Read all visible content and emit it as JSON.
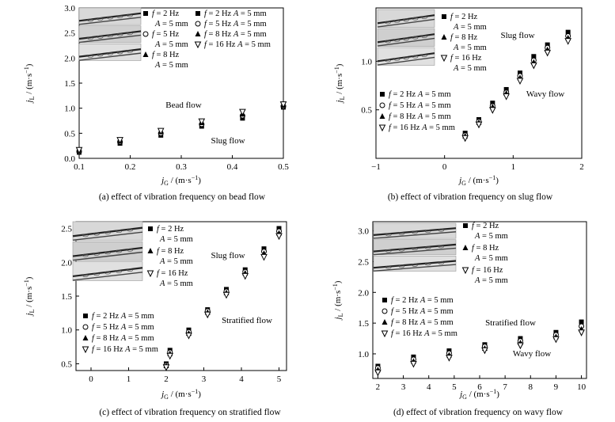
{
  "chart_data": [
    {
      "type": "scatter",
      "caption": "(a) effect of vibration frequency on bead flow",
      "xlabel_var": "j",
      "xlabel_sub": "G",
      "xlabel_unit": " / (m·s",
      "ylabel_var": "j",
      "ylabel_sub": "L",
      "ylabel_unit": " / (m·s",
      "unit_exp": "−1",
      "unit_close": ")",
      "xlim": [
        0.1,
        0.5
      ],
      "ylim": [
        0.0,
        3.0
      ],
      "xticks": [
        "0.1",
        "0.2",
        "0.3",
        "0.4",
        "0.5"
      ],
      "yticks": [
        "0.0",
        "0.5",
        "1.0",
        "1.5",
        "2.0",
        "2.5",
        "3.0"
      ],
      "legend": [
        {
          "marker": "square",
          "label": "f = 2 Hz  A = 5 mm"
        },
        {
          "marker": "circle",
          "label": "f = 5 Hz  A = 5 mm"
        },
        {
          "marker": "triangle",
          "label": "f = 8 Hz  A = 5 mm"
        },
        {
          "marker": "tri-down",
          "label": "f = 16 Hz A = 5 mm"
        }
      ],
      "inset_labels": [
        {
          "marker": "square",
          "line1": "f = 2 Hz",
          "line2": "A = 5 mm"
        },
        {
          "marker": "circle",
          "line1": "f = 5 Hz",
          "line2": "A = 5 mm"
        },
        {
          "marker": "triangle",
          "line1": "f = 8 Hz",
          "line2": "A = 5 mm"
        }
      ],
      "annotations": [
        "Bead flow",
        "Slug flow"
      ],
      "x": [
        0.1,
        0.18,
        0.26,
        0.34,
        0.42,
        0.5
      ],
      "series": [
        {
          "name": "f = 2 Hz",
          "marker": "square",
          "values": [
            0.12,
            0.3,
            0.46,
            0.64,
            0.8,
            1.02
          ]
        },
        {
          "name": "f = 5 Hz",
          "marker": "circle",
          "values": [
            0.14,
            0.33,
            0.5,
            0.68,
            0.85,
            1.04
          ]
        },
        {
          "name": "f = 8 Hz",
          "marker": "triangle",
          "values": [
            0.16,
            0.35,
            0.53,
            0.71,
            0.88,
            1.06
          ]
        },
        {
          "name": "f = 16 Hz",
          "marker": "tri-down",
          "values": [
            0.17,
            0.37,
            0.55,
            0.74,
            0.93,
            1.08
          ]
        }
      ]
    },
    {
      "type": "scatter",
      "caption": "(b) effect of vibration frequency on slug flow",
      "xlabel_var": "j",
      "xlabel_sub": "G",
      "xlabel_unit": " / (m·s",
      "ylabel_var": "j",
      "ylabel_sub": "L",
      "ylabel_unit": " / (m·s",
      "unit_exp": "−1",
      "unit_close": ")",
      "xlim": [
        -1,
        2
      ],
      "ylim": [
        0.0,
        1.55
      ],
      "xticks": [
        "−1",
        "0",
        "1",
        "2"
      ],
      "yticks": [
        "0.5",
        "1.0"
      ],
      "legend": [
        {
          "marker": "square",
          "label": "f = 2 Hz  A = 5 mm"
        },
        {
          "marker": "circle",
          "label": "f = 5 Hz  A = 5 mm"
        },
        {
          "marker": "triangle",
          "label": "f = 8 Hz  A = 5 mm"
        },
        {
          "marker": "tri-down",
          "label": "f = 16 Hz A = 5 mm"
        }
      ],
      "inset_labels": [
        {
          "marker": "square",
          "line1": "f = 2 Hz",
          "line2": "A = 5 mm"
        },
        {
          "marker": "triangle",
          "line1": "f = 8 Hz",
          "line2": "A = 5 mm"
        },
        {
          "marker": "tri-down",
          "line1": "f = 16 Hz",
          "line2": "A = 5 mm"
        }
      ],
      "annotations": [
        "Slug flow",
        "Wavy flow"
      ],
      "x": [
        0.3,
        0.5,
        0.7,
        0.9,
        1.1,
        1.3,
        1.5,
        1.8
      ],
      "series": [
        {
          "name": "f = 2 Hz",
          "marker": "square",
          "values": [
            0.26,
            0.4,
            0.57,
            0.71,
            0.88,
            1.05,
            1.17,
            1.3
          ]
        },
        {
          "name": "f = 5 Hz",
          "marker": "circle",
          "values": [
            0.24,
            0.38,
            0.54,
            0.68,
            0.85,
            1.01,
            1.14,
            1.26
          ]
        },
        {
          "name": "f = 8 Hz",
          "marker": "triangle",
          "values": [
            0.23,
            0.37,
            0.53,
            0.67,
            0.83,
            0.99,
            1.12,
            1.24
          ]
        },
        {
          "name": "f = 16 Hz",
          "marker": "tri-down",
          "values": [
            0.21,
            0.35,
            0.5,
            0.64,
            0.8,
            0.96,
            1.09,
            1.21
          ]
        }
      ]
    },
    {
      "type": "scatter",
      "caption": "(c) effect of vibration frequency on stratified flow",
      "xlabel_var": "j",
      "xlabel_sub": "G",
      "xlabel_unit": " / (m·s",
      "ylabel_var": "j",
      "ylabel_sub": "L",
      "ylabel_unit": " / (m·s",
      "unit_exp": "−1",
      "unit_close": ")",
      "xlim": [
        -0.4,
        5.2
      ],
      "ylim": [
        0.4,
        2.6
      ],
      "xticks": [
        "0",
        "1",
        "2",
        "3",
        "4",
        "5"
      ],
      "yticks": [
        "0.5",
        "1.0",
        "1.5",
        "2.0",
        "2.5"
      ],
      "legend": [
        {
          "marker": "square",
          "label": "f = 2 Hz  A = 5 mm"
        },
        {
          "marker": "circle",
          "label": "f = 5 Hz  A = 5 mm"
        },
        {
          "marker": "triangle",
          "label": "f = 8 Hz  A = 5 mm"
        },
        {
          "marker": "tri-down",
          "label": "f = 16 Hz A = 5 mm"
        }
      ],
      "inset_labels": [
        {
          "marker": "square",
          "line1": "f = 2 Hz",
          "line2": "A = 5 mm"
        },
        {
          "marker": "triangle",
          "line1": "f = 8 Hz",
          "line2": "A = 5 mm"
        },
        {
          "marker": "tri-down",
          "line1": "f = 16 Hz",
          "line2": "A = 5 mm"
        }
      ],
      "annotations": [
        "Slug flow",
        "Stratified flow"
      ],
      "x": [
        2.0,
        2.1,
        2.6,
        3.1,
        3.6,
        4.1,
        4.6,
        5.0
      ],
      "series": [
        {
          "name": "f = 2 Hz",
          "marker": "square",
          "values": [
            0.5,
            0.7,
            1.0,
            1.3,
            1.6,
            1.89,
            2.2,
            2.5
          ]
        },
        {
          "name": "f = 5 Hz",
          "marker": "circle",
          "values": [
            0.48,
            0.67,
            0.97,
            1.28,
            1.57,
            1.86,
            2.16,
            2.46
          ]
        },
        {
          "name": "f = 8 Hz",
          "marker": "triangle",
          "values": [
            0.47,
            0.65,
            0.95,
            1.26,
            1.55,
            1.84,
            2.13,
            2.43
          ]
        },
        {
          "name": "f = 16 Hz",
          "marker": "tri-down",
          "values": [
            0.45,
            0.62,
            0.92,
            1.23,
            1.52,
            1.8,
            2.08,
            2.39
          ]
        }
      ]
    },
    {
      "type": "scatter",
      "caption": "(d) effect of vibration frequency on wavy flow",
      "xlabel_var": "j",
      "xlabel_sub": "G",
      "xlabel_unit": " / (m·s",
      "ylabel_var": "j",
      "ylabel_sub": "L",
      "ylabel_unit": " / (m·s",
      "unit_exp": "−1",
      "unit_close": ")",
      "xlim": [
        1.8,
        10.2
      ],
      "ylim": [
        0.6,
        3.15
      ],
      "xticks": [
        "2",
        "3",
        "4",
        "5",
        "6",
        "7",
        "8",
        "9",
        "10"
      ],
      "yticks": [
        "1.0",
        "1.5",
        "2.0",
        "2.5",
        "3.0"
      ],
      "legend": [
        {
          "marker": "square",
          "label": "f = 2 Hz  A = 5 mm"
        },
        {
          "marker": "circle",
          "label": "f = 5 Hz  A = 5 mm"
        },
        {
          "marker": "triangle",
          "label": "f = 8 Hz  A = 5 mm"
        },
        {
          "marker": "tri-down",
          "label": "f = 16 Hz A = 5 mm"
        }
      ],
      "inset_labels": [
        {
          "marker": "square",
          "line1": "f = 2 Hz",
          "line2": "A = 5 mm"
        },
        {
          "marker": "triangle",
          "line1": "f = 8 Hz",
          "line2": "A = 5 mm"
        },
        {
          "marker": "tri-down",
          "line1": "f = 16 Hz",
          "line2": "A = 5 mm"
        }
      ],
      "annotations": [
        "Stratified flow",
        "Wavy flow"
      ],
      "x": [
        2.0,
        3.4,
        4.8,
        6.2,
        7.6,
        9.0,
        10.0
      ],
      "series": [
        {
          "name": "f = 2 Hz",
          "marker": "square",
          "values": [
            0.8,
            0.95,
            1.05,
            1.15,
            1.25,
            1.35,
            1.52
          ]
        },
        {
          "name": "f = 5 Hz",
          "marker": "circle",
          "values": [
            0.77,
            0.91,
            1.01,
            1.12,
            1.21,
            1.31,
            1.45
          ]
        },
        {
          "name": "f = 8 Hz",
          "marker": "triangle",
          "values": [
            0.74,
            0.88,
            0.98,
            1.09,
            1.18,
            1.28,
            1.4
          ]
        },
        {
          "name": "f = 16 Hz",
          "marker": "tri-down",
          "values": [
            0.7,
            0.84,
            0.94,
            1.06,
            1.14,
            1.24,
            1.35
          ]
        }
      ]
    }
  ]
}
